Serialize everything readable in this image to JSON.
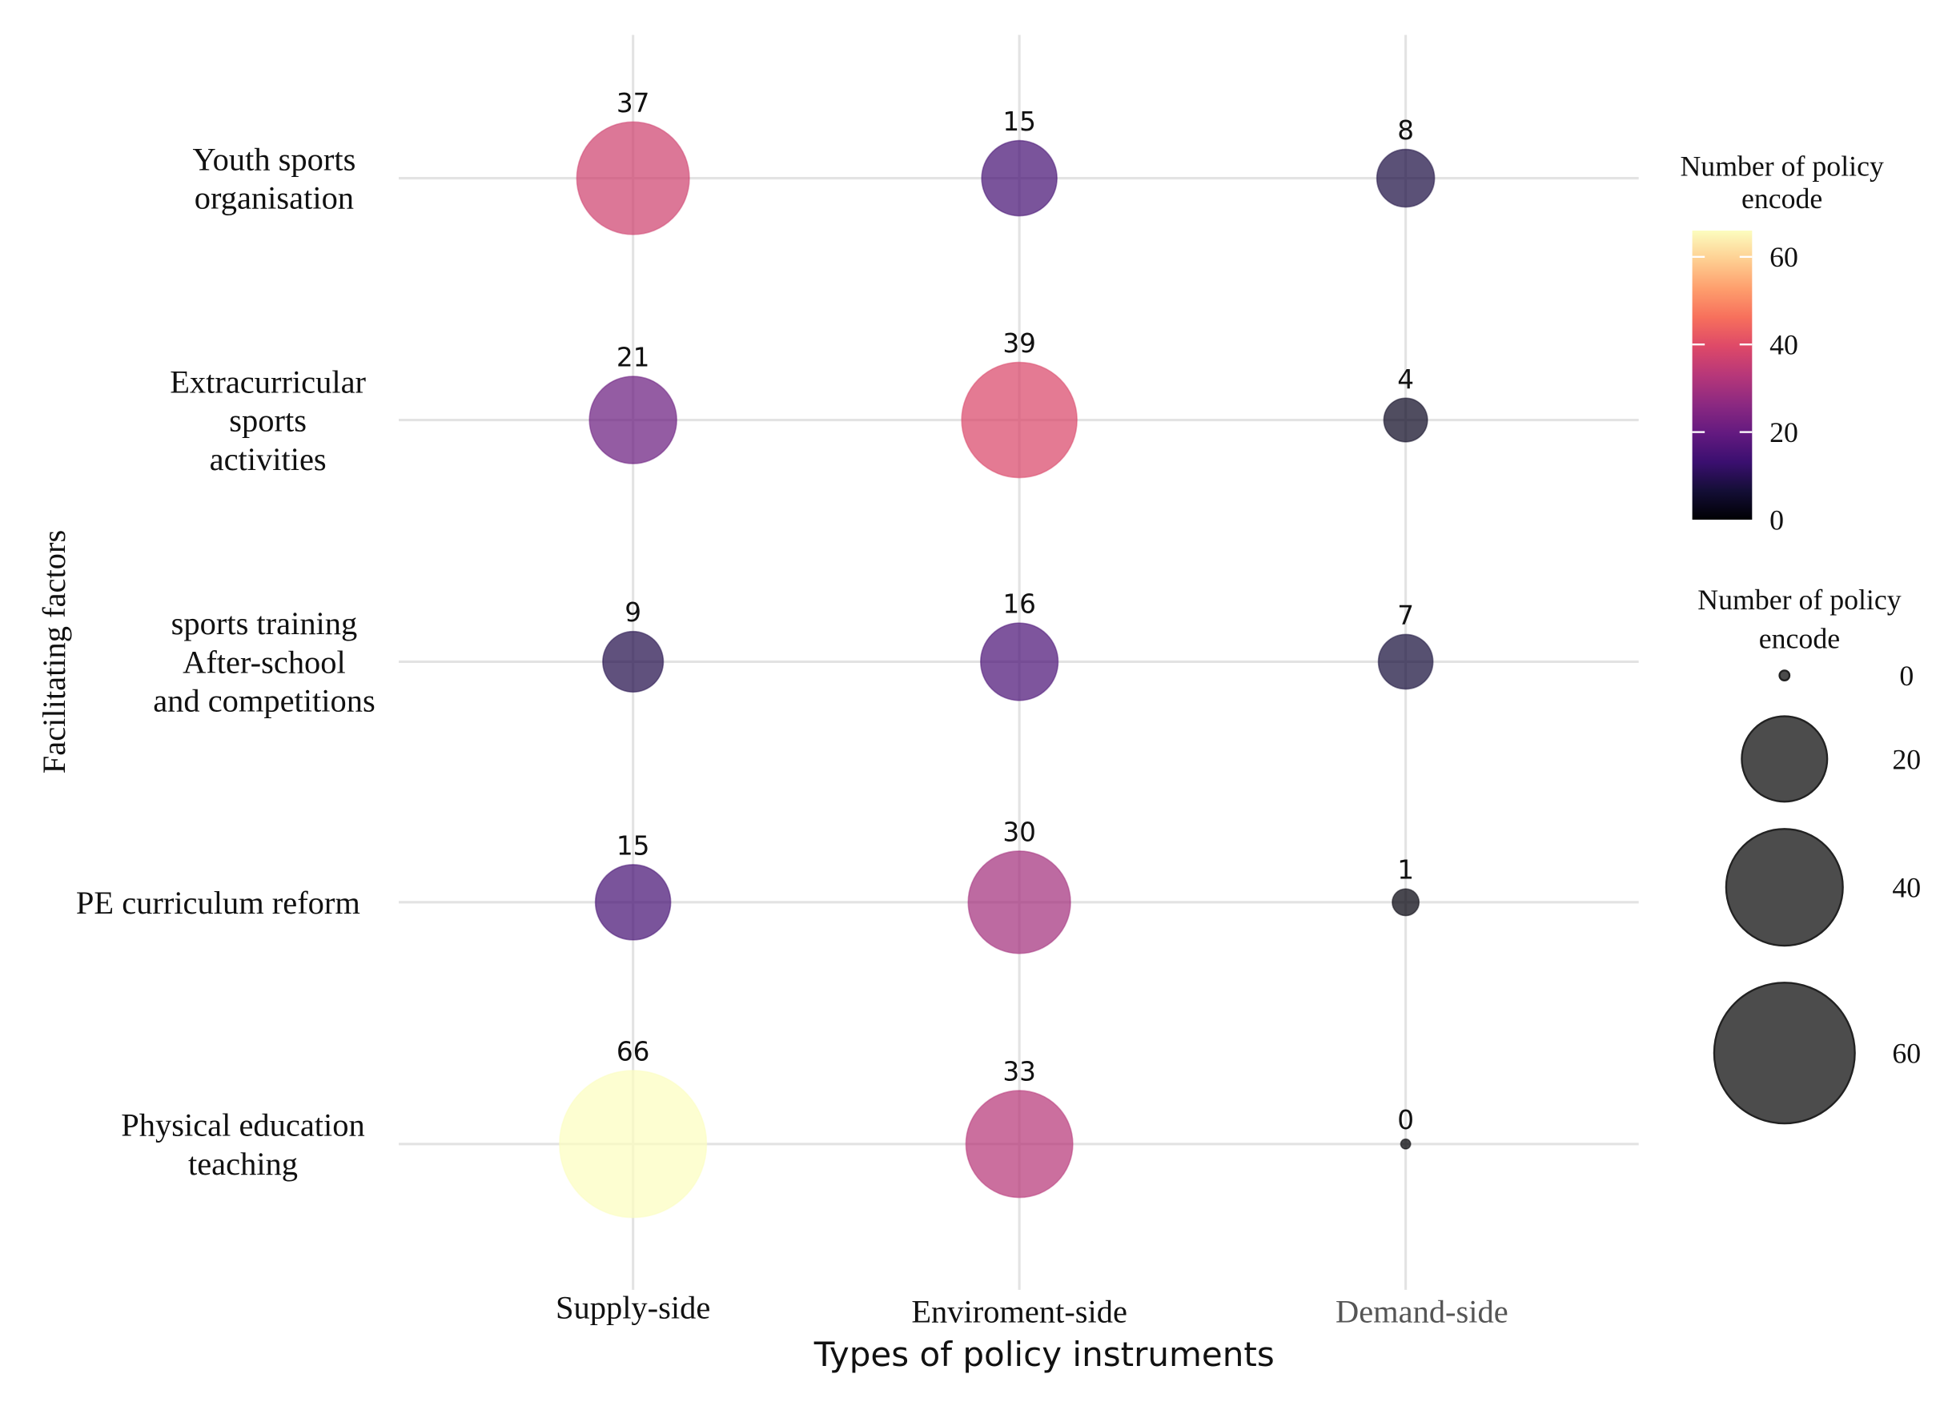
{
  "chart_data": {
    "type": "scatter",
    "subtype": "bubble",
    "x_categories": [
      "Supply-side",
      "Enviroment-side",
      "Demand-side"
    ],
    "y_categories": [
      "Youth sports organisation",
      "Extracurricular sports activities",
      "sports training After-school and competitions",
      "PE curriculum reform",
      "Physical education teaching"
    ],
    "y_label_lines": [
      [
        "Youth sports",
        "organisation"
      ],
      [
        "Extracurricular",
        "sports",
        "activities"
      ],
      [
        "sports training",
        "After-school",
        "and competitions"
      ],
      [
        "PE curriculum reform"
      ],
      [
        "Physical education",
        "teaching"
      ]
    ],
    "values": [
      [
        37,
        15,
        8
      ],
      [
        21,
        39,
        4
      ],
      [
        9,
        16,
        7
      ],
      [
        15,
        30,
        1
      ],
      [
        66,
        33,
        0
      ]
    ],
    "xlabel": "Types of policy instruments",
    "ylabel": "Facilitating factors",
    "color_scale": {
      "title_lines": [
        "Number of policy",
        "encode"
      ],
      "palette": "magma",
      "range": [
        0,
        66
      ],
      "ticks": [
        0,
        20,
        40,
        60
      ],
      "colors": [
        "#000004",
        "#140e36",
        "#3b0f70",
        "#641a80",
        "#8c2981",
        "#b73779",
        "#de4968",
        "#f7705c",
        "#fe9f6d",
        "#fecf92",
        "#fcfdbf"
      ]
    },
    "size_legend": {
      "title_lines": [
        "Number of policy",
        "encode"
      ],
      "breaks": [
        0,
        20,
        40,
        60
      ],
      "color": "#333333"
    },
    "grid": true,
    "legend_position": "right"
  }
}
